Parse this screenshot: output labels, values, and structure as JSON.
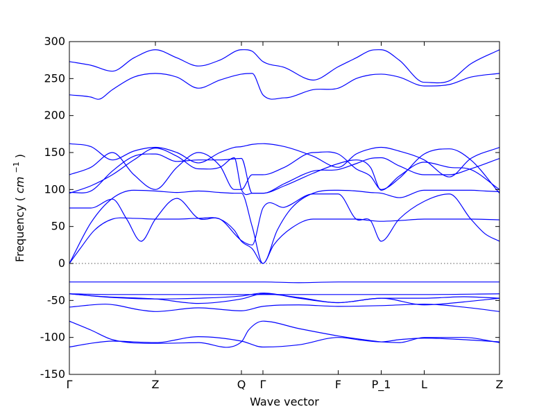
{
  "chart_data": {
    "type": "line",
    "title": "",
    "xlabel": "Wave vector",
    "ylabel": "Frequency (cm⁻¹)",
    "ylabel_text": "Frequency",
    "ylabel_unit_base": "cm",
    "ylabel_unit_exp": "−1",
    "ylim": [
      -150,
      300
    ],
    "yticks": [
      -150,
      -100,
      -50,
      0,
      50,
      100,
      150,
      200,
      250,
      300
    ],
    "xlim": [
      0,
      6
    ],
    "xticks": [
      {
        "pos": 0.0,
        "label": "Γ"
      },
      {
        "pos": 1.2,
        "label": "Z"
      },
      {
        "pos": 2.4,
        "label": "Q"
      },
      {
        "pos": 2.7,
        "label": "Γ"
      },
      {
        "pos": 3.75,
        "label": "F"
      },
      {
        "pos": 4.35,
        "label": "P_1"
      },
      {
        "pos": 4.95,
        "label": "L"
      },
      {
        "pos": 6.0,
        "label": "Z"
      }
    ],
    "zero_line": true,
    "line_color": "#0000ff",
    "series": [
      {
        "x": [
          0.0,
          0.3,
          0.6,
          1.2,
          1.8,
          2.4,
          2.7,
          3.2,
          3.75,
          4.1,
          4.35,
          4.6,
          4.95,
          5.5,
          6.0
        ],
        "y": [
          -113,
          -108,
          -105,
          -107,
          -99,
          -105,
          -113,
          -110,
          -100,
          -104,
          -106,
          -103,
          -101,
          -103,
          -106
        ]
      },
      {
        "x": [
          0.0,
          0.3,
          0.6,
          1.2,
          1.8,
          2.4,
          2.5,
          2.7,
          3.2,
          3.75,
          4.1,
          4.35,
          4.6,
          4.95,
          5.5,
          6.0
        ],
        "y": [
          -78,
          -90,
          -103,
          -108,
          -107,
          -106,
          -90,
          -78,
          -88,
          -98,
          -103,
          -106,
          -107,
          -100,
          -100,
          -107
        ]
      },
      {
        "x": [
          0.0,
          0.5,
          1.0,
          1.2,
          1.8,
          2.4,
          2.7,
          3.2,
          3.75,
          4.35,
          4.95,
          5.5,
          6.0
        ],
        "y": [
          -59,
          -55,
          -63,
          -65,
          -60,
          -64,
          -58,
          -56,
          -58,
          -57,
          -55,
          -59,
          -65
        ]
      },
      {
        "x": [
          0.0,
          0.5,
          1.0,
          1.2,
          1.8,
          2.4,
          2.7,
          3.2,
          3.75,
          4.35,
          4.95,
          5.5,
          6.0
        ],
        "y": [
          -41,
          -45,
          -47,
          -48,
          -54,
          -48,
          -41,
          -46,
          -53,
          -47,
          -56,
          -52,
          -47
        ]
      },
      {
        "x": [
          0.0,
          0.6,
          1.2,
          1.8,
          2.4,
          2.7,
          3.2,
          3.75,
          4.35,
          4.95,
          5.5,
          6.0
        ],
        "y": [
          -41,
          -46,
          -48,
          -47,
          -44,
          -40,
          -47,
          -53,
          -47,
          -47,
          -45,
          -47
        ]
      },
      {
        "x": [
          0.0,
          0.6,
          1.2,
          1.8,
          2.4,
          2.7,
          3.2,
          3.75,
          4.35,
          4.95,
          5.5,
          6.0
        ],
        "y": [
          -25,
          -25,
          -25,
          -25,
          -25,
          -25,
          -26,
          -25,
          -25,
          -25,
          -25,
          -25
        ]
      },
      {
        "x": [
          0.0,
          0.6,
          1.2,
          1.8,
          2.4,
          2.7,
          3.2,
          3.75,
          4.35,
          4.95,
          6.0
        ],
        "y": [
          -41,
          -42,
          -42,
          -42,
          -42,
          -42,
          -42,
          -42,
          -42,
          -42,
          -41
        ]
      },
      {
        "x": [
          0.0,
          0.15,
          0.35,
          0.6,
          0.9,
          1.2,
          1.5,
          1.8,
          2.1,
          2.3,
          2.4,
          2.55,
          2.7,
          2.85,
          3.1,
          3.4,
          3.75,
          4.0,
          4.2,
          4.35,
          4.6,
          4.95,
          5.3,
          5.6,
          6.0
        ],
        "y": [
          0,
          20,
          45,
          60,
          61,
          60,
          60,
          61,
          60,
          45,
          30,
          20,
          0,
          25,
          48,
          60,
          60,
          60,
          58,
          57,
          58,
          60,
          60,
          60,
          59
        ]
      },
      {
        "x": [
          0.0,
          0.3,
          0.6,
          0.9,
          1.2,
          1.5,
          1.8,
          2.1,
          2.3,
          2.4,
          2.55,
          2.7,
          2.9,
          3.1,
          3.4,
          3.75,
          4.0,
          4.2,
          4.35,
          4.6,
          4.95,
          5.3,
          5.6,
          5.8,
          6.0
        ],
        "y": [
          0,
          55,
          88,
          99,
          98,
          96,
          98,
          96,
          95,
          95,
          50,
          0,
          45,
          75,
          95,
          99,
          98,
          96,
          95,
          89,
          99,
          99,
          99,
          98,
          97
        ]
      },
      {
        "x": [
          0.0,
          0.3,
          0.6,
          0.8,
          1.0,
          1.2,
          1.5,
          1.8,
          2.1,
          2.4,
          2.55,
          2.7,
          3.0,
          3.4,
          3.75,
          4.0,
          4.2,
          4.35,
          4.6,
          4.95,
          5.3,
          5.6,
          5.8,
          6.0
        ],
        "y": [
          75,
          75,
          87,
          60,
          30,
          60,
          88,
          61,
          60,
          31,
          25,
          75,
          76,
          94,
          94,
          60,
          58,
          30,
          60,
          84,
          94,
          60,
          40,
          30
        ]
      },
      {
        "x": [
          0.0,
          0.3,
          0.6,
          0.9,
          1.2,
          1.5,
          1.8,
          2.1,
          2.3,
          2.4,
          2.55,
          2.7,
          3.0,
          3.4,
          3.75,
          4.0,
          4.2,
          4.35,
          4.6,
          4.95,
          5.3,
          5.6,
          6.0
        ],
        "y": [
          95,
          105,
          120,
          140,
          156,
          145,
          128,
          130,
          143,
          100,
          95,
          95,
          105,
          122,
          135,
          140,
          130,
          99,
          118,
          137,
          130,
          127,
          100
        ]
      },
      {
        "x": [
          0.0,
          0.3,
          0.6,
          0.9,
          1.2,
          1.5,
          1.8,
          2.1,
          2.3,
          2.4,
          2.55,
          2.7,
          3.0,
          3.4,
          3.75,
          4.0,
          4.2,
          4.35,
          4.6,
          4.95,
          5.3,
          5.6,
          6.0
        ],
        "y": [
          120,
          130,
          150,
          120,
          100,
          130,
          150,
          132,
          100,
          100,
          120,
          120,
          130,
          150,
          148,
          128,
          118,
          100,
          115,
          148,
          155,
          140,
          95
        ]
      },
      {
        "x": [
          0.0,
          0.3,
          0.6,
          0.9,
          1.2,
          1.5,
          1.8,
          2.1,
          2.3,
          2.4,
          2.55,
          2.7,
          3.0,
          3.4,
          3.75,
          4.0,
          4.2,
          4.35,
          4.6,
          4.95,
          5.3,
          5.6,
          6.0
        ],
        "y": [
          162,
          158,
          140,
          152,
          157,
          150,
          136,
          150,
          157,
          158,
          161,
          162,
          158,
          145,
          130,
          148,
          155,
          157,
          152,
          140,
          117,
          142,
          157
        ]
      },
      {
        "x": [
          0.0,
          0.3,
          0.6,
          0.9,
          1.2,
          1.5,
          1.8,
          2.1,
          2.4,
          2.55,
          2.7,
          3.0,
          3.4,
          3.75,
          4.0,
          4.2,
          4.35,
          4.6,
          4.95,
          5.3,
          5.6,
          6.0
        ],
        "y": [
          96,
          98,
          125,
          145,
          148,
          138,
          140,
          140,
          142,
          95,
          95,
          108,
          125,
          127,
          135,
          142,
          143,
          132,
          120,
          120,
          128,
          142
        ]
      },
      {
        "x": [
          0.0,
          0.3,
          0.4,
          0.6,
          0.9,
          1.2,
          1.5,
          1.8,
          2.1,
          2.4,
          2.55,
          2.7,
          3.0,
          3.4,
          3.75,
          4.0,
          4.2,
          4.35,
          4.6,
          4.95,
          5.3,
          5.6,
          6.0
        ],
        "y": [
          228,
          225,
          222,
          235,
          252,
          257,
          252,
          237,
          248,
          256,
          257,
          228,
          224,
          235,
          237,
          250,
          255,
          256,
          252,
          240,
          242,
          252,
          257
        ]
      },
      {
        "x": [
          0.0,
          0.3,
          0.6,
          0.9,
          1.2,
          1.5,
          1.8,
          2.1,
          2.4,
          2.55,
          2.7,
          3.0,
          3.4,
          3.75,
          4.0,
          4.2,
          4.35,
          4.6,
          4.95,
          5.3,
          5.6,
          6.0
        ],
        "y": [
          273,
          268,
          260,
          278,
          289,
          278,
          267,
          275,
          289,
          287,
          273,
          265,
          248,
          266,
          278,
          288,
          289,
          275,
          245,
          247,
          270,
          289
        ]
      }
    ]
  }
}
